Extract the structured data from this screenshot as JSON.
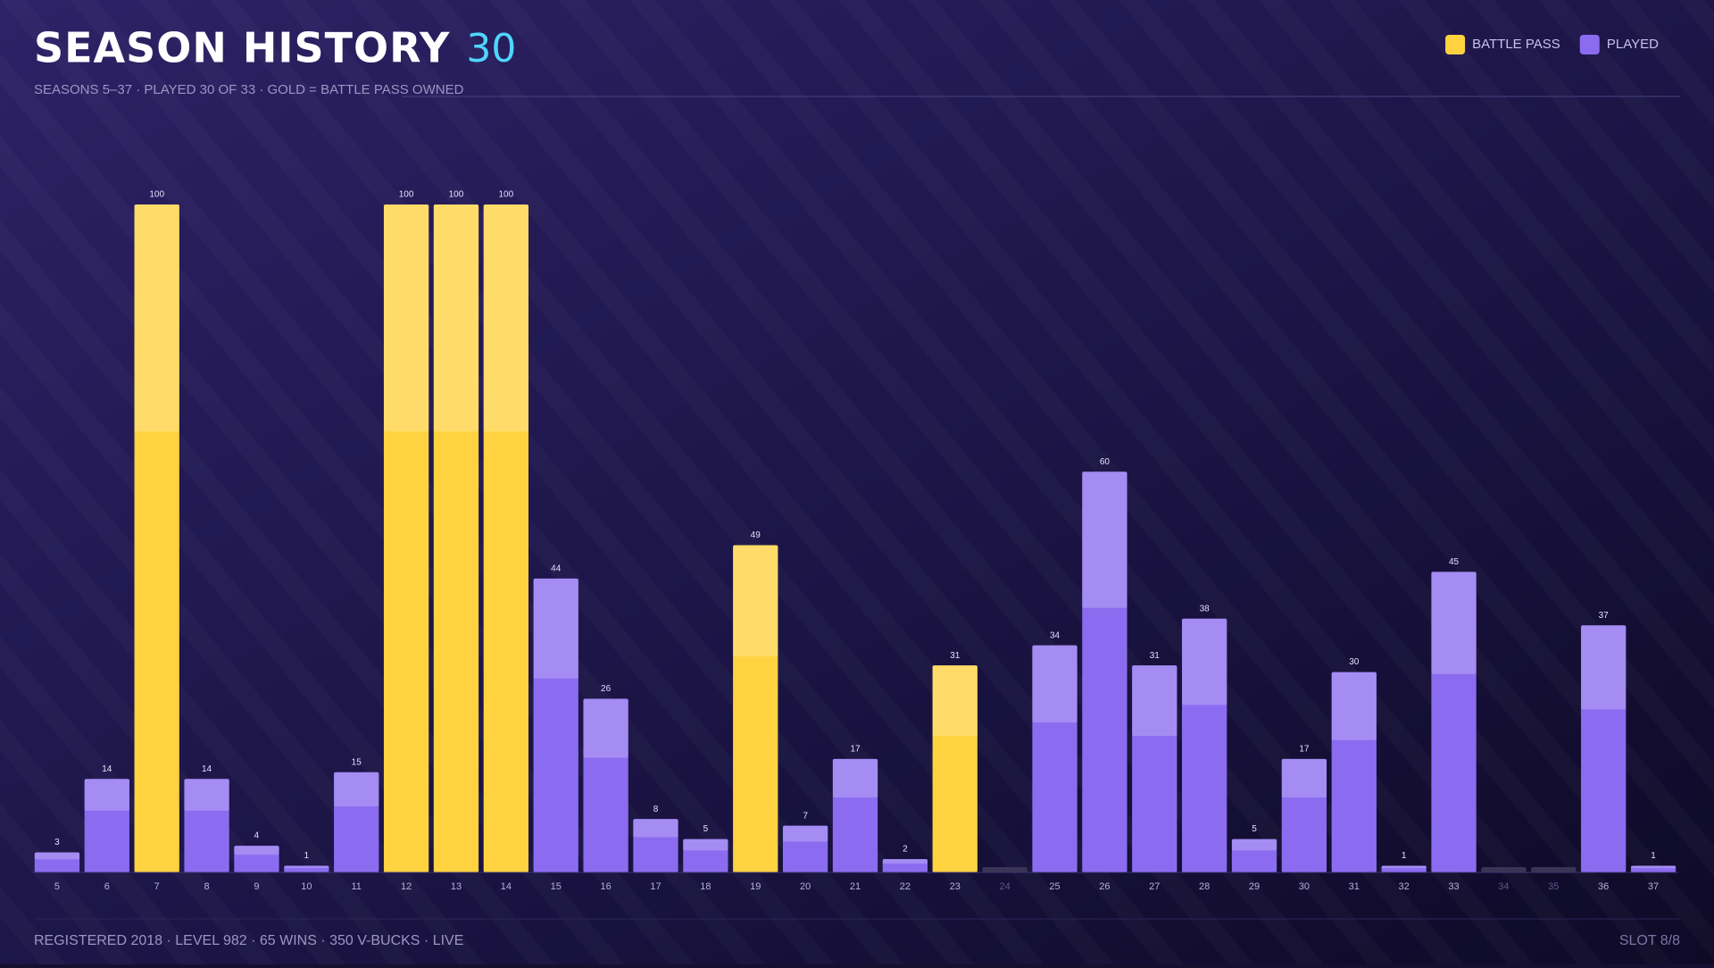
{
  "chart_data": {
    "type": "bar",
    "title": "SEASON HISTORY",
    "title_count": "30",
    "subtitle": "SEASONS 5–37 · PLAYED 30 OF 33 · GOLD = BATTLE PASS OWNED",
    "footer_left": "REGISTERED 2018 · LEVEL 982 · 65 WINS · 350 V-BUCKS · LIVE",
    "footer_right": "SLOT 8/8",
    "categories": [
      "5",
      "6",
      "7",
      "8",
      "9",
      "10",
      "11",
      "12",
      "13",
      "14",
      "15",
      "16",
      "17",
      "18",
      "19",
      "20",
      "21",
      "22",
      "23",
      "24",
      "25",
      "26",
      "27",
      "28",
      "29",
      "30",
      "31",
      "32",
      "33",
      "34",
      "35",
      "36",
      "37"
    ],
    "series": [
      {
        "name": "BATTLE PASS",
        "color": "#ffd23f",
        "values": [
          null,
          null,
          100,
          null,
          null,
          null,
          null,
          100,
          100,
          100,
          null,
          null,
          null,
          null,
          49,
          null,
          null,
          null,
          31,
          null,
          null,
          null,
          null,
          null,
          null,
          null,
          null,
          null,
          null,
          null,
          null,
          null,
          null
        ]
      },
      {
        "name": "PLAYED",
        "color": "#8b6cf0",
        "values": [
          3,
          14,
          null,
          14,
          4,
          1,
          15,
          null,
          null,
          null,
          44,
          26,
          8,
          5,
          null,
          7,
          17,
          2,
          null,
          null,
          34,
          60,
          31,
          38,
          5,
          17,
          30,
          1,
          45,
          null,
          null,
          37,
          1
        ]
      }
    ],
    "ylim": [
      0,
      100
    ]
  }
}
